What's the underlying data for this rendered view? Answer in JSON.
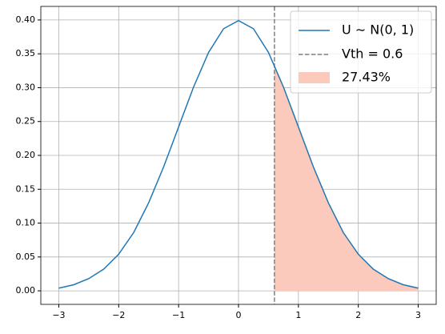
{
  "chart_data": {
    "type": "line",
    "x": [
      -3,
      -2.75,
      -2.5,
      -2.25,
      -2,
      -1.75,
      -1.5,
      -1.25,
      -1,
      -0.75,
      -0.5,
      -0.25,
      0,
      0.25,
      0.5,
      0.75,
      1,
      1.25,
      1.5,
      1.75,
      2,
      2.25,
      2.5,
      2.75,
      3
    ],
    "series": [
      {
        "name": "U ∼ N(0, 1)",
        "color": "#1f77b4",
        "values": [
          0.004,
          0.009,
          0.018,
          0.032,
          0.054,
          0.086,
          0.13,
          0.183,
          0.242,
          0.301,
          0.352,
          0.387,
          0.399,
          0.387,
          0.352,
          0.301,
          0.242,
          0.183,
          0.13,
          0.086,
          0.054,
          0.032,
          0.018,
          0.009,
          0.004
        ]
      }
    ],
    "threshold": {
      "name": "Vth = 0.6",
      "value": 0.6,
      "color": "#808080"
    },
    "area": {
      "name": "27.43%",
      "color": "#fcc9bd",
      "x": [
        0.6,
        0.75,
        1,
        1.25,
        1.5,
        1.75,
        2,
        2.25,
        2.5,
        2.75,
        3
      ],
      "values": [
        0.333,
        0.301,
        0.242,
        0.183,
        0.13,
        0.086,
        0.054,
        0.032,
        0.018,
        0.009,
        0.004
      ]
    },
    "xlim": [
      -3.3,
      3.3
    ],
    "ylim": [
      -0.02,
      0.42
    ],
    "xticks": [
      {
        "value": -3,
        "label": "−3"
      },
      {
        "value": -2,
        "label": "−2"
      },
      {
        "value": -1,
        "label": "−1"
      },
      0,
      1,
      2,
      3
    ],
    "yticks": [
      {
        "value": 0,
        "label": "0.00"
      },
      {
        "value": 0.05,
        "label": "0.05"
      },
      {
        "value": 0.1,
        "label": "0.10"
      },
      {
        "value": 0.15,
        "label": "0.15"
      },
      {
        "value": 0.2,
        "label": "0.20"
      },
      {
        "value": 0.25,
        "label": "0.25"
      },
      {
        "value": 0.3,
        "label": "0.30"
      },
      {
        "value": 0.35,
        "label": "0.35"
      },
      {
        "value": 0.4,
        "label": "0.40"
      }
    ],
    "grid": true,
    "legend": "upper right"
  }
}
